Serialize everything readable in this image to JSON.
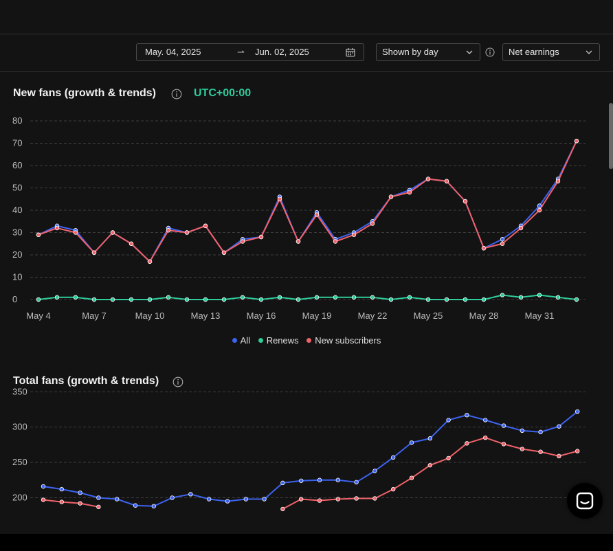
{
  "toolbar": {
    "date_from": "May. 04, 2025",
    "date_arrow": "⇀",
    "date_to": "Jun. 02, 2025",
    "group_by": "Shown by day",
    "metric": "Net earnings"
  },
  "new_fans": {
    "title": "New fans (growth & trends)",
    "timezone": "UTC+00:00"
  },
  "total_fans": {
    "title": "Total fans (growth & trends)"
  },
  "legend": [
    {
      "label": "All",
      "color": "#3d63f0"
    },
    {
      "label": "Renews",
      "color": "#2ecc9a"
    },
    {
      "label": "New subscribers",
      "color": "#f0626a"
    }
  ],
  "chart_data": [
    {
      "type": "line",
      "title": "New fans (growth & trends)",
      "x": [
        "May 4",
        "May 5",
        "May 6",
        "May 7",
        "May 8",
        "May 9",
        "May 10",
        "May 11",
        "May 12",
        "May 13",
        "May 14",
        "May 15",
        "May 16",
        "May 17",
        "May 18",
        "May 19",
        "May 20",
        "May 21",
        "May 22",
        "May 23",
        "May 24",
        "May 25",
        "May 26",
        "May 27",
        "May 28",
        "May 29",
        "May 30",
        "May 31",
        "Jun 1",
        "Jun 2"
      ],
      "x_tick_labels": [
        "May 4",
        "May 7",
        "May 10",
        "May 13",
        "May 16",
        "May 19",
        "May 22",
        "May 25",
        "May 28",
        "May 31"
      ],
      "y_ticks": [
        0,
        10,
        20,
        30,
        40,
        50,
        60,
        70,
        80
      ],
      "ylim": [
        0,
        80
      ],
      "grid": true,
      "legend_position": "bottom",
      "series": [
        {
          "name": "All",
          "color": "#3d63f0",
          "values": [
            29,
            33,
            31,
            21,
            30,
            25,
            17,
            32,
            30,
            33,
            21,
            27,
            28,
            46,
            26,
            39,
            27,
            30,
            35,
            46,
            49,
            54,
            53,
            44,
            23,
            27,
            33,
            42,
            54,
            71
          ]
        },
        {
          "name": "Renews",
          "color": "#2ecc9a",
          "values": [
            0,
            1,
            1,
            0,
            0,
            0,
            0,
            1,
            0,
            0,
            0,
            1,
            0,
            1,
            0,
            1,
            1,
            1,
            1,
            0,
            1,
            0,
            0,
            0,
            0,
            2,
            1,
            2,
            1,
            0
          ]
        },
        {
          "name": "New subscribers",
          "color": "#f0626a",
          "values": [
            29,
            32,
            30,
            21,
            30,
            25,
            17,
            31,
            30,
            33,
            21,
            26,
            28,
            45,
            26,
            38,
            26,
            29,
            34,
            46,
            48,
            54,
            53,
            44,
            23,
            25,
            32,
            40,
            53,
            71
          ]
        }
      ]
    },
    {
      "type": "line",
      "title": "Total fans (growth & trends)",
      "x": [
        "May 4",
        "May 5",
        "May 6",
        "May 7",
        "May 8",
        "May 9",
        "May 10",
        "May 11",
        "May 12",
        "May 13",
        "May 14",
        "May 15",
        "May 16",
        "May 17",
        "May 18",
        "May 19",
        "May 20",
        "May 21",
        "May 22",
        "May 23",
        "May 24",
        "May 25",
        "May 26",
        "May 27",
        "May 28",
        "May 29",
        "May 30",
        "May 31",
        "Jun 1",
        "Jun 2"
      ],
      "y_ticks": [
        200,
        250,
        300,
        350
      ],
      "ylim": [
        180,
        360
      ],
      "grid": true,
      "series": [
        {
          "name": "All",
          "color": "#3d63f0",
          "values": [
            216,
            212,
            207,
            200,
            198,
            189,
            188,
            200,
            205,
            198,
            195,
            198,
            198,
            221,
            224,
            225,
            225,
            222,
            238,
            257,
            278,
            284,
            310,
            317,
            310,
            302,
            295,
            293,
            301,
            322
          ]
        },
        {
          "name": "New subscribers",
          "color": "#f0626a",
          "values": [
            197,
            194,
            192,
            187,
            null,
            null,
            null,
            null,
            null,
            null,
            null,
            null,
            null,
            184,
            198,
            196,
            198,
            199,
            199,
            212,
            228,
            246,
            256,
            277,
            285,
            276,
            269,
            265,
            259,
            266
          ]
        }
      ]
    }
  ]
}
